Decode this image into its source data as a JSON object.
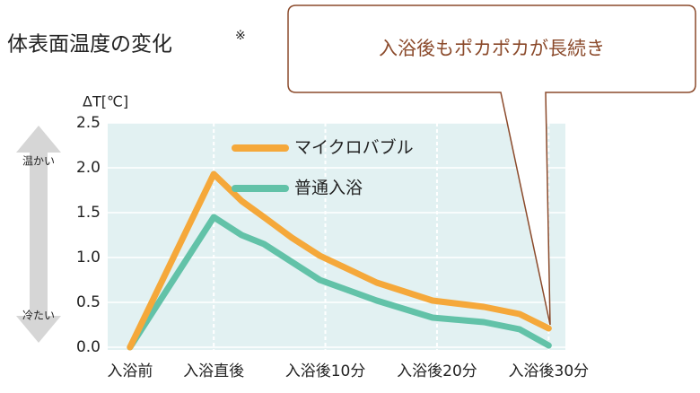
{
  "chart_data": {
    "type": "line",
    "title": "体表面温度の変化",
    "title_mark": "※",
    "y_label": "ΔT[℃]",
    "callout": "入浴後もポカポカが長続き",
    "warm_label": "温かい",
    "cold_label": "冷たい",
    "x": [
      -7.5,
      0,
      2.5,
      4.5,
      7,
      9.5,
      14.6,
      19.6,
      24.2,
      27.4,
      30
    ],
    "xlim": [
      -9.5,
      31.5
    ],
    "xticks": [
      {
        "value": -7.5,
        "label": "入浴前"
      },
      {
        "value": 0,
        "label": "入浴直後"
      },
      {
        "value": 10,
        "label": "入浴後10分"
      },
      {
        "value": 20,
        "label": "入浴後20分"
      },
      {
        "value": 30,
        "label": "入浴後30分"
      }
    ],
    "ylim": [
      0,
      2.5
    ],
    "yticks": [
      {
        "value": 0,
        "label": "0.0"
      },
      0.5,
      {
        "value": 1,
        "label": "1.0"
      },
      1.5,
      {
        "value": 2,
        "label": "2.0"
      },
      2.5
    ],
    "grid": true,
    "series": [
      {
        "name": "マイクロバブル",
        "color": "#f5a83a",
        "values": [
          0,
          1.93,
          1.63,
          1.45,
          1.22,
          1.02,
          0.72,
          0.52,
          0.45,
          0.37,
          0.21
        ]
      },
      {
        "name": "普通入浴",
        "color": "#62c2a8",
        "values": [
          0,
          1.45,
          1.25,
          1.15,
          0.95,
          0.75,
          0.52,
          0.33,
          0.28,
          0.2,
          0.02
        ]
      }
    ]
  }
}
